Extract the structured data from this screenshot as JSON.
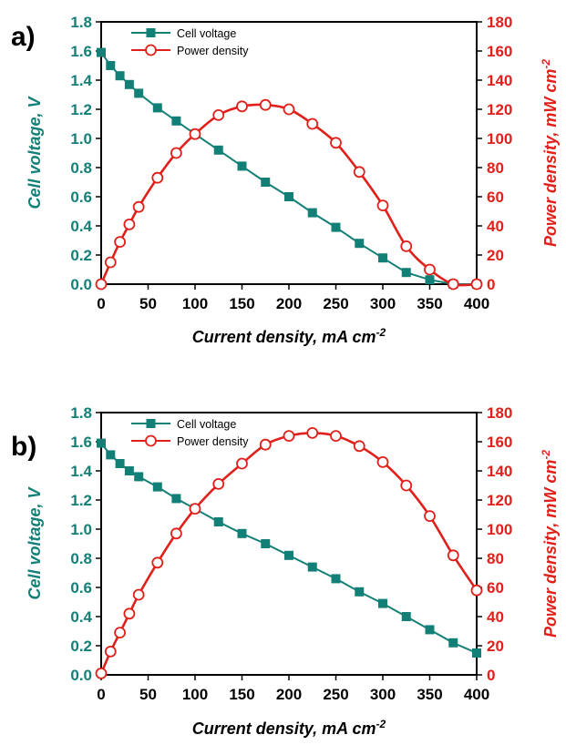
{
  "colors": {
    "voltage": "#138078",
    "power": "#e0201a",
    "frame": "#000000"
  },
  "chart_data": [
    {
      "type": "line",
      "panel_label": "a)",
      "xlabel": "Current density, mA cm",
      "xlabel_sup": "-2",
      "ylabel": "Cell voltage, V",
      "y2label": "Power density, mW cm",
      "y2label_sup": "-2",
      "xlim": [
        0,
        400
      ],
      "ylim": [
        0,
        1.8
      ],
      "y2lim": [
        0,
        180
      ],
      "xticks": [
        "0",
        "50",
        "100",
        "150",
        "200",
        "250",
        "300",
        "350",
        "400"
      ],
      "yticks": [
        "0.0",
        "0.2",
        "0.4",
        "0.6",
        "0.8",
        "1.0",
        "1.2",
        "1.4",
        "1.6",
        "1.8"
      ],
      "y2ticks": [
        "0",
        "20",
        "40",
        "60",
        "80",
        "100",
        "120",
        "140",
        "160",
        "180"
      ],
      "legend_position": "top-left",
      "series": [
        {
          "name": "Cell voltage",
          "axis": "left",
          "marker": "square",
          "x": [
            0,
            10,
            20,
            30,
            40,
            60,
            80,
            100,
            125,
            150,
            175,
            200,
            225,
            250,
            275,
            300,
            325,
            350,
            375,
            400
          ],
          "y": [
            1.59,
            1.5,
            1.43,
            1.37,
            1.31,
            1.21,
            1.12,
            1.03,
            0.92,
            0.81,
            0.7,
            0.6,
            0.49,
            0.39,
            0.28,
            0.18,
            0.08,
            0.03,
            0.0,
            0.0
          ]
        },
        {
          "name": "Power density",
          "axis": "right",
          "marker": "circle",
          "x": [
            0,
            10,
            20,
            30,
            40,
            60,
            80,
            100,
            125,
            150,
            175,
            200,
            225,
            250,
            275,
            300,
            325,
            350,
            375,
            400
          ],
          "y": [
            0,
            15,
            29,
            41,
            53,
            73,
            90,
            103,
            116,
            122,
            123,
            120,
            110,
            97,
            77,
            54,
            26,
            10,
            0,
            0
          ]
        }
      ]
    },
    {
      "type": "line",
      "panel_label": "b)",
      "xlabel": "Current density, mA cm",
      "xlabel_sup": "-2",
      "ylabel": "Cell voltage, V",
      "y2label": "Power density, mW cm",
      "y2label_sup": "-2",
      "xlim": [
        0,
        400
      ],
      "ylim": [
        0,
        1.8
      ],
      "y2lim": [
        0,
        180
      ],
      "xticks": [
        "0",
        "50",
        "100",
        "150",
        "200",
        "250",
        "300",
        "350",
        "400"
      ],
      "yticks": [
        "0.0",
        "0.2",
        "0.4",
        "0.6",
        "0.8",
        "1.0",
        "1.2",
        "1.4",
        "1.6",
        "1.8"
      ],
      "y2ticks": [
        "0",
        "20",
        "40",
        "60",
        "80",
        "100",
        "120",
        "140",
        "160",
        "180"
      ],
      "legend_position": "top-left",
      "series": [
        {
          "name": "Cell voltage",
          "axis": "left",
          "marker": "square",
          "x": [
            0,
            10,
            20,
            30,
            40,
            60,
            80,
            100,
            125,
            150,
            175,
            200,
            225,
            250,
            275,
            300,
            325,
            350,
            375,
            400
          ],
          "y": [
            1.59,
            1.51,
            1.45,
            1.4,
            1.36,
            1.29,
            1.21,
            1.14,
            1.05,
            0.97,
            0.9,
            0.82,
            0.74,
            0.66,
            0.57,
            0.49,
            0.4,
            0.31,
            0.22,
            0.15
          ]
        },
        {
          "name": "Power density",
          "axis": "right",
          "marker": "circle",
          "x": [
            0,
            10,
            20,
            30,
            40,
            60,
            80,
            100,
            125,
            150,
            175,
            200,
            225,
            250,
            275,
            300,
            325,
            350,
            375,
            400
          ],
          "y": [
            1,
            16,
            29,
            42,
            55,
            77,
            97,
            114,
            131,
            145,
            158,
            164,
            166,
            164,
            157,
            146,
            130,
            109,
            82,
            58
          ]
        }
      ]
    }
  ]
}
